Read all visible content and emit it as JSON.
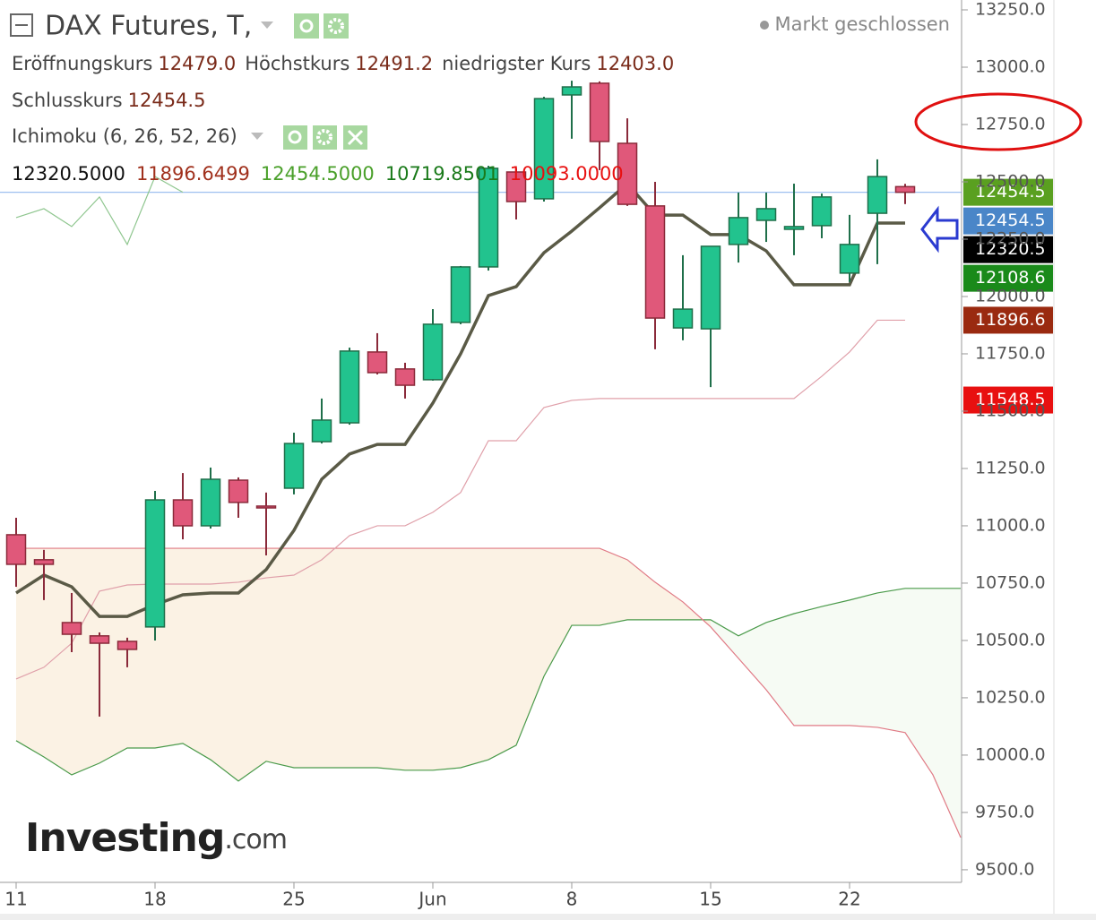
{
  "chart_data": {
    "type": "candlestick",
    "title": "DAX Futures, T,",
    "status": "Markt geschlossen",
    "ohlc_legend": [
      {
        "label": "Eröffnungskurs",
        "value": "12479.0"
      },
      {
        "label": "Höchstkurs",
        "value": "12491.2"
      },
      {
        "label": "niedrigster Kurs",
        "value": "12403.0"
      },
      {
        "label": "Schlusskurs",
        "value": "12454.5"
      }
    ],
    "indicator": "Ichimoku (6, 26, 52, 26)",
    "indicator_values": [
      {
        "text": "12320.5000",
        "color": "#111111"
      },
      {
        "text": "11896.6499",
        "color": "#a0301c"
      },
      {
        "text": "12454.5000",
        "color": "#4aa02a"
      },
      {
        "text": "10719.8501",
        "color": "#1a7a1a"
      },
      {
        "text": "10093.0000",
        "color": "#e81010"
      }
    ],
    "watermark": {
      "brand": "Investing",
      "suffix": ".com"
    },
    "categories": [
      "11",
      null,
      null,
      null,
      null,
      "18",
      null,
      null,
      null,
      null,
      "25",
      null,
      null,
      null,
      null,
      "Jun",
      null,
      null,
      null,
      null,
      "8",
      null,
      null,
      null,
      null,
      "15",
      null,
      null,
      null,
      null,
      "22",
      null,
      null,
      null,
      null
    ],
    "open": [
      10961,
      10852,
      10578,
      10520,
      10496,
      10559,
      11113,
      11000,
      11199,
      11086,
      11164,
      11367,
      11449,
      11758,
      11684,
      11637,
      11887,
      12129,
      12543,
      12426,
      12879,
      12930,
      12668,
      12395,
      11863,
      11859,
      12227,
      12332,
      12293,
      12309,
      12102,
      12363,
      12479,
      null,
      null
    ],
    "high": [
      11035,
      10895,
      10707,
      10535,
      10512,
      11152,
      11230,
      11254,
      11211,
      11145,
      11406,
      11555,
      11777,
      11840,
      11711,
      11945,
      12133,
      12570,
      12559,
      12871,
      12941,
      12938,
      12777,
      12500,
      12180,
      12219,
      12453,
      12453,
      12492,
      12449,
      12356,
      12598,
      12491.2,
      null,
      null
    ],
    "low": [
      10734,
      10676,
      10449,
      10168,
      10383,
      10500,
      10941,
      10988,
      11035,
      10871,
      11137,
      11359,
      11441,
      11660,
      11555,
      11633,
      11879,
      12113,
      12336,
      12414,
      12688,
      12551,
      12395,
      11770,
      11809,
      11605,
      12148,
      12238,
      12180,
      12254,
      12063,
      12141,
      12403,
      null,
      null
    ],
    "close": [
      10832,
      10832,
      10527,
      10488,
      10461,
      11113,
      11000,
      11203,
      11102,
      11078,
      11359,
      11461,
      11762,
      11668,
      11613,
      11879,
      12129,
      12559,
      12414,
      12863,
      12914,
      12676,
      12402,
      11906,
      11945,
      12219,
      12344,
      12383,
      12305,
      12434,
      12227,
      12523,
      12454.5,
      null,
      null
    ],
    "up_color": "#22c38e",
    "down_color": "#e0587a",
    "series": [
      {
        "color": "#4a9a4a",
        "values": [
          10063,
          9992,
          9914,
          9965,
          10031,
          10031,
          10051,
          9980,
          9887,
          9973,
          9945,
          9945,
          9945,
          9945,
          9934,
          9934,
          9945,
          9980,
          10043,
          10344,
          10566,
          10566,
          10590,
          10590,
          10590,
          10590,
          10520,
          10578,
          10617,
          10648,
          10676,
          10707,
          10727,
          10727,
          10727
        ]
      },
      {
        "color": "#e07a85",
        "values": [
          10902,
          10902,
          10902,
          10902,
          10902,
          10902,
          10902,
          10902,
          10902,
          10902,
          10902,
          10902,
          10902,
          10902,
          10902,
          10902,
          10902,
          10902,
          10902,
          10902,
          10902,
          10902,
          10852,
          10754,
          10668,
          10559,
          10422,
          10285,
          10129,
          10129,
          10129,
          10121,
          10098,
          9914,
          9641
        ]
      },
      {
        "color": "#e0a0aa",
        "values": [
          10332,
          10383,
          10488,
          10715,
          10742,
          10746,
          10746,
          10746,
          10754,
          10773,
          10785,
          10852,
          10957,
          11000,
          11000,
          11059,
          11145,
          11371,
          11371,
          11516,
          11547,
          11555,
          11555,
          11555,
          11555,
          11555,
          11555,
          11555,
          11555,
          11652,
          11758,
          11896.6,
          11896.6,
          null,
          null
        ]
      },
      {
        "color": "#8fc68f",
        "values": [
          12344,
          12383,
          12305,
          12434,
          12227,
          12523,
          12454.5,
          null,
          null,
          null,
          null,
          null,
          null,
          null,
          null,
          null,
          null,
          null,
          null,
          null,
          null,
          null,
          null,
          null,
          null,
          null,
          null,
          null,
          null,
          null,
          null,
          null,
          null,
          null,
          null
        ]
      },
      {
        "color": "#5a5a46",
        "values": [
          10707,
          10785,
          10734,
          10605,
          10605,
          10656,
          10699,
          10707,
          10707,
          10809,
          10980,
          11203,
          11313,
          11355,
          11355,
          11535,
          11750,
          12004,
          12043,
          12191,
          12285,
          12387,
          12492,
          12355,
          12355,
          12270,
          12270,
          12199,
          12051,
          12051,
          12051,
          12320.5,
          12320.5,
          null,
          null
        ]
      }
    ],
    "cloud_colors": [
      "#fbf2e4",
      "#f6fbf4"
    ],
    "price_tags": [
      {
        "value": 12454.5,
        "color": "#5aa020"
      },
      {
        "value": 12454.5,
        "color": "#4a86c8"
      },
      {
        "value": 12320.5,
        "color": "#000000"
      },
      {
        "value": 12108.6,
        "color": "#1a8a1a"
      },
      {
        "value": 11896.6,
        "color": "#9a2a10"
      },
      {
        "value": 11548.5,
        "color": "#e81010"
      }
    ],
    "ylim": [
      9445,
      13293
    ],
    "yticks": [
      {
        "value": 9500,
        "label": "9500.0"
      },
      {
        "value": 9750,
        "label": "9750.0"
      },
      {
        "value": 10000,
        "label": "10000.0"
      },
      {
        "value": 10250,
        "label": "10250.0"
      },
      {
        "value": 10500,
        "label": "10500.0"
      },
      {
        "value": 10750,
        "label": "10750.0"
      },
      {
        "value": 11000,
        "label": "11000.0"
      },
      {
        "value": 11250,
        "label": "11250.0"
      },
      {
        "value": 11500,
        "label": "11500.0"
      },
      {
        "value": 11750,
        "label": "11750.0"
      },
      {
        "value": 12000,
        "label": "12000.0"
      },
      {
        "value": 12250,
        "label": "12250.0"
      },
      {
        "value": 12500,
        "label": "12500.0"
      },
      {
        "value": 12750,
        "label": "12750.0"
      },
      {
        "value": 13000,
        "label": "13000.0"
      },
      {
        "value": 13250,
        "label": "13250.0"
      }
    ]
  }
}
